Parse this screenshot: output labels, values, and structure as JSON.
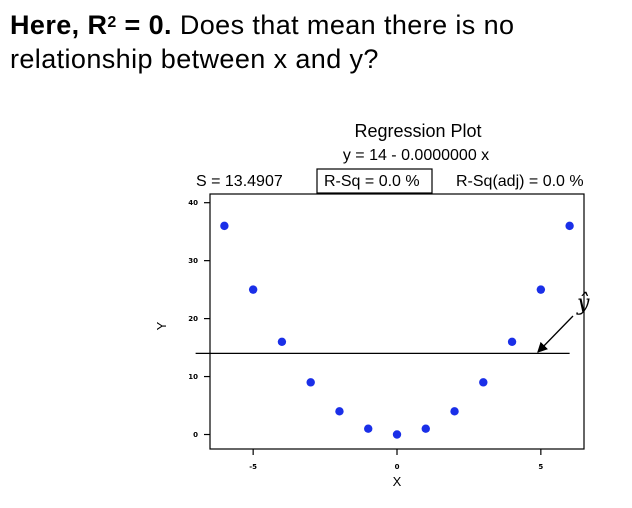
{
  "question": {
    "bold_prefix": "Here, R",
    "bold_sup": "2",
    "bold_suffix": " = 0.",
    "line1_rest": " Does that mean there is no",
    "line2": "relationship between x and y?"
  },
  "chart_data": {
    "type": "scatter",
    "title": "Regression Plot",
    "equation": "y = 14 - 0.0000000 x",
    "stats": {
      "s": "S = 13.4907",
      "rsq": "R-Sq = 0.0 %",
      "rsq_adj": "R-Sq(adj) = 0.0 %"
    },
    "xlabel": "X",
    "ylabel": "Y",
    "xlim": [
      -6.5,
      6.5
    ],
    "ylim": [
      -2.5,
      41.5
    ],
    "xticks": [
      -5,
      0,
      5
    ],
    "xtick_labels": [
      "-5",
      "0",
      "5"
    ],
    "yticks": [
      0,
      10,
      20,
      30,
      40
    ],
    "ytick_labels": [
      "0",
      "10",
      "20",
      "30",
      "40"
    ],
    "grid": false,
    "point_color": "#1a2fe8",
    "points": [
      {
        "x": -6,
        "y": 36
      },
      {
        "x": -5,
        "y": 25
      },
      {
        "x": -4,
        "y": 16
      },
      {
        "x": -3,
        "y": 9
      },
      {
        "x": -2,
        "y": 4
      },
      {
        "x": -1,
        "y": 1
      },
      {
        "x": 0,
        "y": 0
      },
      {
        "x": 1,
        "y": 1
      },
      {
        "x": 2,
        "y": 4
      },
      {
        "x": 3,
        "y": 9
      },
      {
        "x": 4,
        "y": 16
      },
      {
        "x": 5,
        "y": 25
      },
      {
        "x": 6,
        "y": 36
      }
    ],
    "fit_line": {
      "intercept": 14,
      "slope": 0,
      "x_range": [
        -7.0,
        6.0
      ]
    },
    "annotation": {
      "label": "ŷ",
      "points_to": {
        "x": 5.2,
        "y": 14
      }
    }
  }
}
